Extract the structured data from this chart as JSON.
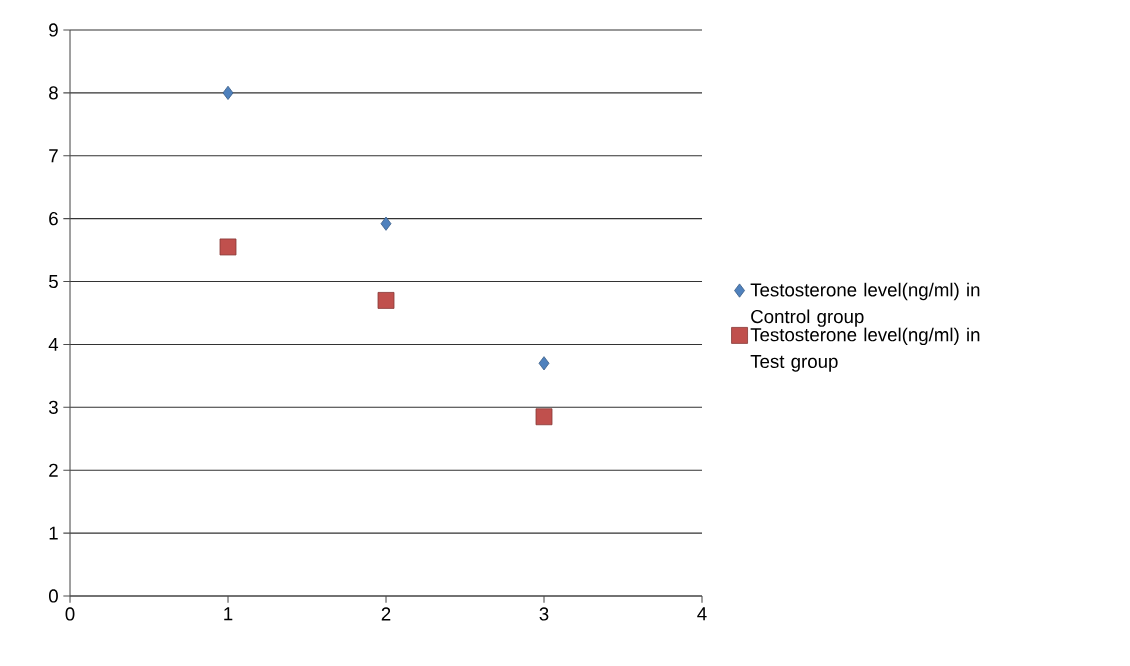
{
  "chart_data": {
    "type": "scatter",
    "series": [
      {
        "name": "Testosterone level(ng/ml) in Control group",
        "color": "#4f81bd",
        "marker": "diamond",
        "x": [
          1,
          2,
          3
        ],
        "values": [
          8.0,
          5.92,
          3.7
        ]
      },
      {
        "name": "Testosterone level(ng/ml) in Test group",
        "color": "#c0504d",
        "marker": "square",
        "x": [
          1,
          2,
          3
        ],
        "values": [
          5.55,
          4.7,
          2.85
        ]
      }
    ],
    "xlim": [
      0,
      4
    ],
    "xticks": [
      0,
      1,
      2,
      3,
      4
    ],
    "ylim": [
      0,
      9
    ],
    "yticks": [
      0,
      1,
      2,
      3,
      4,
      5,
      6,
      7,
      8,
      9
    ],
    "grid": "y",
    "legend": "right"
  }
}
